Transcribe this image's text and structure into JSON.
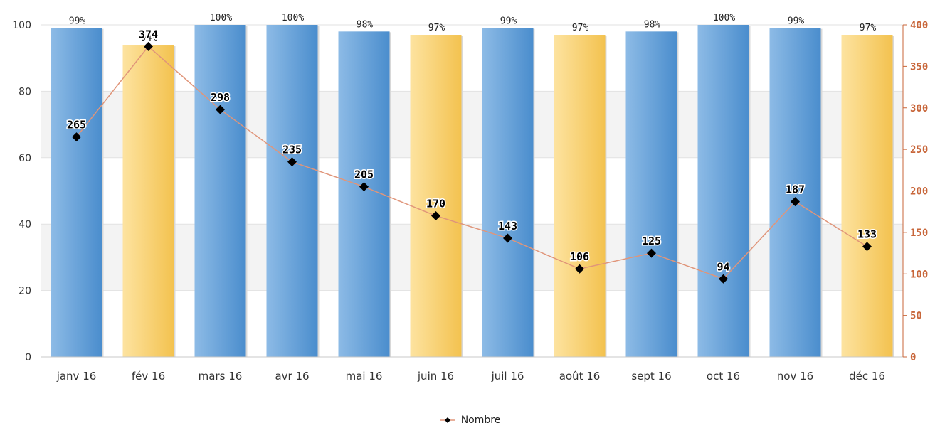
{
  "chart_data": {
    "type": "bar",
    "categories": [
      "janv 16",
      "fév 16",
      "mars 16",
      "avr 16",
      "mai 16",
      "juin 16",
      "juil 16",
      "août 16",
      "sept 16",
      "oct 16",
      "nov 16",
      "déc 16"
    ],
    "bar_values": [
      99,
      94,
      100,
      100,
      98,
      97,
      99,
      97,
      98,
      100,
      99,
      97
    ],
    "bar_labels": [
      "99%",
      "94%",
      "100%",
      "100%",
      "98%",
      "97%",
      "99%",
      "97%",
      "98%",
      "100%",
      "99%",
      "97%"
    ],
    "bar_colors": [
      "blue",
      "yellow",
      "blue",
      "blue",
      "blue",
      "yellow",
      "blue",
      "yellow",
      "blue",
      "blue",
      "blue",
      "yellow"
    ],
    "palette": {
      "blue": "#5b9bd5",
      "blue_light": "#8dbbe6",
      "yellow": "#f5c95c",
      "yellow_light": "#fde3a0",
      "line": "#e0957a",
      "right_axis": "#c8663a"
    },
    "left_axis": {
      "ylim": [
        0,
        100
      ],
      "ticks": [
        "0",
        "20",
        "40",
        "60",
        "80",
        "100"
      ]
    },
    "right_axis": {
      "ylim": [
        0,
        400
      ],
      "ticks": [
        "0",
        "50",
        "100",
        "150",
        "200",
        "250",
        "300",
        "350",
        "400"
      ]
    },
    "series": [
      {
        "name": "Nombre",
        "values": [
          265,
          374,
          298,
          235,
          205,
          170,
          143,
          106,
          125,
          94,
          187,
          133
        ]
      }
    ],
    "grid": true,
    "legend_position": "bottom-center"
  }
}
